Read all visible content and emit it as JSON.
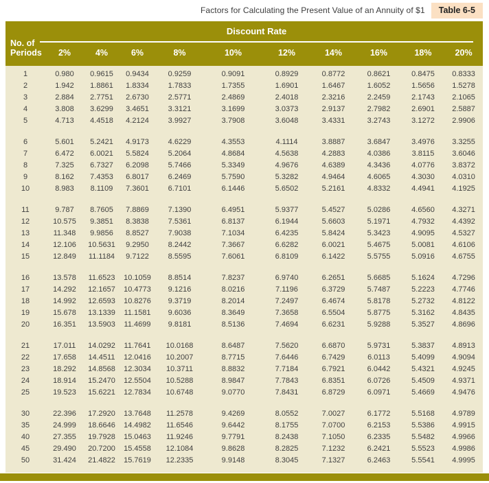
{
  "title": "Factors for Calculating the Present Value of an Annuity of $1",
  "table_label": "Table 6-5",
  "colors": {
    "header_olive": "#9B8F0A",
    "body_cream": "#EEE9D0",
    "badge_peach": "#FBE0C3",
    "text_dark": "#3f3f3f"
  },
  "header": {
    "row_axis_line1": "No. of",
    "row_axis_line2": "Periods",
    "group_label": "Discount Rate",
    "columns": [
      "2%",
      "4%",
      "6%",
      "8%",
      "10%",
      "12%",
      "14%",
      "16%",
      "18%",
      "20%"
    ]
  },
  "table": {
    "row_groups": [
      [
        {
          "period": "1",
          "values": [
            "0.980",
            "0.9615",
            "0.9434",
            "0.9259",
            "0.9091",
            "0.8929",
            "0.8772",
            "0.8621",
            "0.8475",
            "0.8333"
          ]
        },
        {
          "period": "2",
          "values": [
            "1.942",
            "1.8861",
            "1.8334",
            "1.7833",
            "1.7355",
            "1.6901",
            "1.6467",
            "1.6052",
            "1.5656",
            "1.5278"
          ]
        },
        {
          "period": "3",
          "values": [
            "2.884",
            "2.7751",
            "2.6730",
            "2.5771",
            "2.4869",
            "2.4018",
            "2.3216",
            "2.2459",
            "2.1743",
            "2.1065"
          ]
        },
        {
          "period": "4",
          "values": [
            "3.808",
            "3.6299",
            "3.4651",
            "3.3121",
            "3.1699",
            "3.0373",
            "2.9137",
            "2.7982",
            "2.6901",
            "2.5887"
          ]
        },
        {
          "period": "5",
          "values": [
            "4.713",
            "4.4518",
            "4.2124",
            "3.9927",
            "3.7908",
            "3.6048",
            "3.4331",
            "3.2743",
            "3.1272",
            "2.9906"
          ]
        }
      ],
      [
        {
          "period": "6",
          "values": [
            "5.601",
            "5.2421",
            "4.9173",
            "4.6229",
            "4.3553",
            "4.1114",
            "3.8887",
            "3.6847",
            "3.4976",
            "3.3255"
          ]
        },
        {
          "period": "7",
          "values": [
            "6.472",
            "6.0021",
            "5.5824",
            "5.2064",
            "4.8684",
            "4.5638",
            "4.2883",
            "4.0386",
            "3.8115",
            "3.6046"
          ]
        },
        {
          "period": "8",
          "values": [
            "7.325",
            "6.7327",
            "6.2098",
            "5.7466",
            "5.3349",
            "4.9676",
            "4.6389",
            "4.3436",
            "4.0776",
            "3.8372"
          ]
        },
        {
          "period": "9",
          "values": [
            "8.162",
            "7.4353",
            "6.8017",
            "6.2469",
            "5.7590",
            "5.3282",
            "4.9464",
            "4.6065",
            "4.3030",
            "4.0310"
          ]
        },
        {
          "period": "10",
          "values": [
            "8.983",
            "8.1109",
            "7.3601",
            "6.7101",
            "6.1446",
            "5.6502",
            "5.2161",
            "4.8332",
            "4.4941",
            "4.1925"
          ]
        }
      ],
      [
        {
          "period": "11",
          "values": [
            "9.787",
            "8.7605",
            "7.8869",
            "7.1390",
            "6.4951",
            "5.9377",
            "5.4527",
            "5.0286",
            "4.6560",
            "4.3271"
          ]
        },
        {
          "period": "12",
          "values": [
            "10.575",
            "9.3851",
            "8.3838",
            "7.5361",
            "6.8137",
            "6.1944",
            "5.6603",
            "5.1971",
            "4.7932",
            "4.4392"
          ]
        },
        {
          "period": "13",
          "values": [
            "11.348",
            "9.9856",
            "8.8527",
            "7.9038",
            "7.1034",
            "6.4235",
            "5.8424",
            "5.3423",
            "4.9095",
            "4.5327"
          ]
        },
        {
          "period": "14",
          "values": [
            "12.106",
            "10.5631",
            "9.2950",
            "8.2442",
            "7.3667",
            "6.6282",
            "6.0021",
            "5.4675",
            "5.0081",
            "4.6106"
          ]
        },
        {
          "period": "15",
          "values": [
            "12.849",
            "11.1184",
            "9.7122",
            "8.5595",
            "7.6061",
            "6.8109",
            "6.1422",
            "5.5755",
            "5.0916",
            "4.6755"
          ]
        }
      ],
      [
        {
          "period": "16",
          "values": [
            "13.578",
            "11.6523",
            "10.1059",
            "8.8514",
            "7.8237",
            "6.9740",
            "6.2651",
            "5.6685",
            "5.1624",
            "4.7296"
          ]
        },
        {
          "period": "17",
          "values": [
            "14.292",
            "12.1657",
            "10.4773",
            "9.1216",
            "8.0216",
            "7.1196",
            "6.3729",
            "5.7487",
            "5.2223",
            "4.7746"
          ]
        },
        {
          "period": "18",
          "values": [
            "14.992",
            "12.6593",
            "10.8276",
            "9.3719",
            "8.2014",
            "7.2497",
            "6.4674",
            "5.8178",
            "5.2732",
            "4.8122"
          ]
        },
        {
          "period": "19",
          "values": [
            "15.678",
            "13.1339",
            "11.1581",
            "9.6036",
            "8.3649",
            "7.3658",
            "6.5504",
            "5.8775",
            "5.3162",
            "4.8435"
          ]
        },
        {
          "period": "20",
          "values": [
            "16.351",
            "13.5903",
            "11.4699",
            "9.8181",
            "8.5136",
            "7.4694",
            "6.6231",
            "5.9288",
            "5.3527",
            "4.8696"
          ]
        }
      ],
      [
        {
          "period": "21",
          "values": [
            "17.011",
            "14.0292",
            "11.7641",
            "10.0168",
            "8.6487",
            "7.5620",
            "6.6870",
            "5.9731",
            "5.3837",
            "4.8913"
          ]
        },
        {
          "period": "22",
          "values": [
            "17.658",
            "14.4511",
            "12.0416",
            "10.2007",
            "8.7715",
            "7.6446",
            "6.7429",
            "6.0113",
            "5.4099",
            "4.9094"
          ]
        },
        {
          "period": "23",
          "values": [
            "18.292",
            "14.8568",
            "12.3034",
            "10.3711",
            "8.8832",
            "7.7184",
            "6.7921",
            "6.0442",
            "5.4321",
            "4.9245"
          ]
        },
        {
          "period": "24",
          "values": [
            "18.914",
            "15.2470",
            "12.5504",
            "10.5288",
            "8.9847",
            "7.7843",
            "6.8351",
            "6.0726",
            "5.4509",
            "4.9371"
          ]
        },
        {
          "period": "25",
          "values": [
            "19.523",
            "15.6221",
            "12.7834",
            "10.6748",
            "9.0770",
            "7.8431",
            "6.8729",
            "6.0971",
            "5.4669",
            "4.9476"
          ]
        }
      ],
      [
        {
          "period": "30",
          "values": [
            "22.396",
            "17.2920",
            "13.7648",
            "11.2578",
            "9.4269",
            "8.0552",
            "7.0027",
            "6.1772",
            "5.5168",
            "4.9789"
          ]
        },
        {
          "period": "35",
          "values": [
            "24.999",
            "18.6646",
            "14.4982",
            "11.6546",
            "9.6442",
            "8.1755",
            "7.0700",
            "6.2153",
            "5.5386",
            "4.9915"
          ]
        },
        {
          "period": "40",
          "values": [
            "27.355",
            "19.7928",
            "15.0463",
            "11.9246",
            "9.7791",
            "8.2438",
            "7.1050",
            "6.2335",
            "5.5482",
            "4.9966"
          ]
        },
        {
          "period": "45",
          "values": [
            "29.490",
            "20.7200",
            "15.4558",
            "12.1084",
            "9.8628",
            "8.2825",
            "7.1232",
            "6.2421",
            "5.5523",
            "4.9986"
          ]
        },
        {
          "period": "50",
          "values": [
            "31.424",
            "21.4822",
            "15.7619",
            "12.2335",
            "9.9148",
            "8.3045",
            "7.1327",
            "6.2463",
            "5.5541",
            "4.9995"
          ]
        }
      ]
    ]
  }
}
